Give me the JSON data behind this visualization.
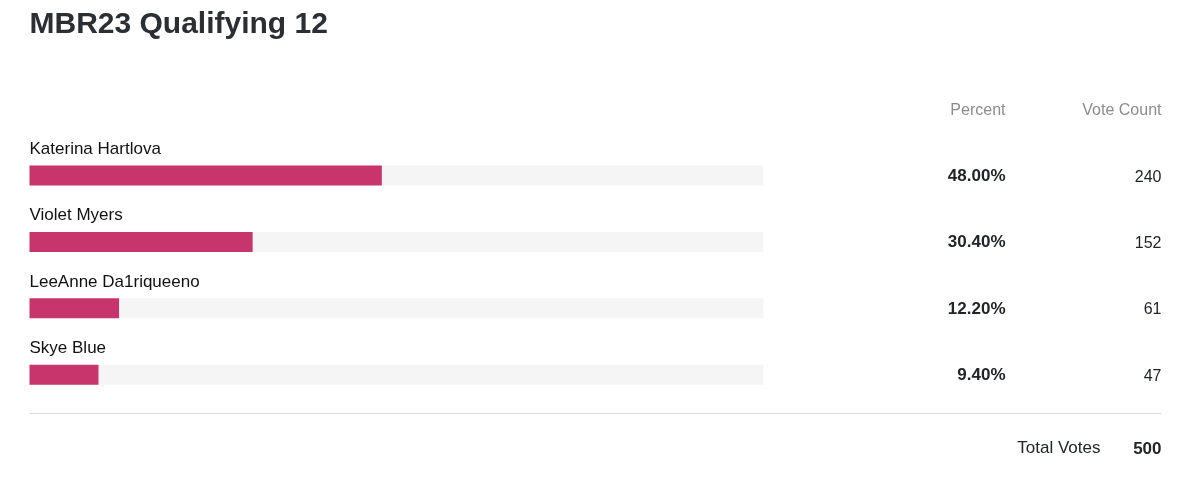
{
  "chart_data": {
    "type": "bar",
    "orientation": "horizontal",
    "title": "MBR23 Qualifying 12",
    "categories": [
      "Katerina Hartlova",
      "Violet Myers",
      "LeeAnne Da1riqueeno",
      "Skye Blue"
    ],
    "values": [
      48.0,
      30.4,
      12.2,
      9.4
    ],
    "value_labels": [
      "48.00%",
      "30.40%",
      "12.20%",
      "9.40%"
    ],
    "color": "#c8356c",
    "xlim": [
      0,
      100
    ],
    "tick_labels": false,
    "annotations": [
      "Percent",
      "Vote Count",
      "240",
      "152",
      "61",
      "47",
      "Total Votes",
      "500"
    ]
  }
}
